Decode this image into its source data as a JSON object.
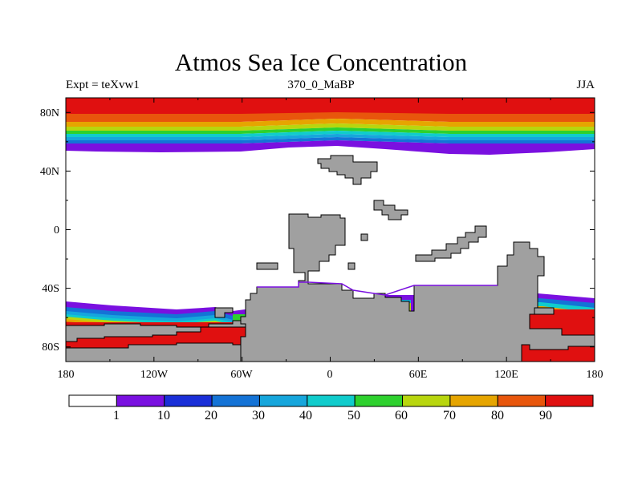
{
  "title": "Atmos Sea Ice Concentration",
  "subtitle_left": "Expt = teXvw1",
  "subtitle_center": "370_0_MaBP",
  "subtitle_right": "JJA",
  "map": {
    "projection": "cylindrical equidistant",
    "lon_range": [
      -180,
      180
    ],
    "lat_range": [
      -90,
      90
    ],
    "x_tick_labels": [
      "180",
      "120W",
      "60W",
      "0",
      "60E",
      "120E",
      "180"
    ],
    "y_tick_labels": [
      "80N",
      "40N",
      "0",
      "40S",
      "80S"
    ],
    "land_color": "#a0a0a0",
    "ocean_color": "#ffffff"
  },
  "colorbar": {
    "labels": [
      "1",
      "10",
      "20",
      "30",
      "40",
      "50",
      "60",
      "70",
      "80",
      "90"
    ],
    "colors": [
      "#ffffff",
      "#7a10e0",
      "#1a2fd8",
      "#1473d6",
      "#16a6dc",
      "#10cccc",
      "#2ed12e",
      "#b8d60e",
      "#e6a500",
      "#e8560c",
      "#e01010"
    ]
  }
}
